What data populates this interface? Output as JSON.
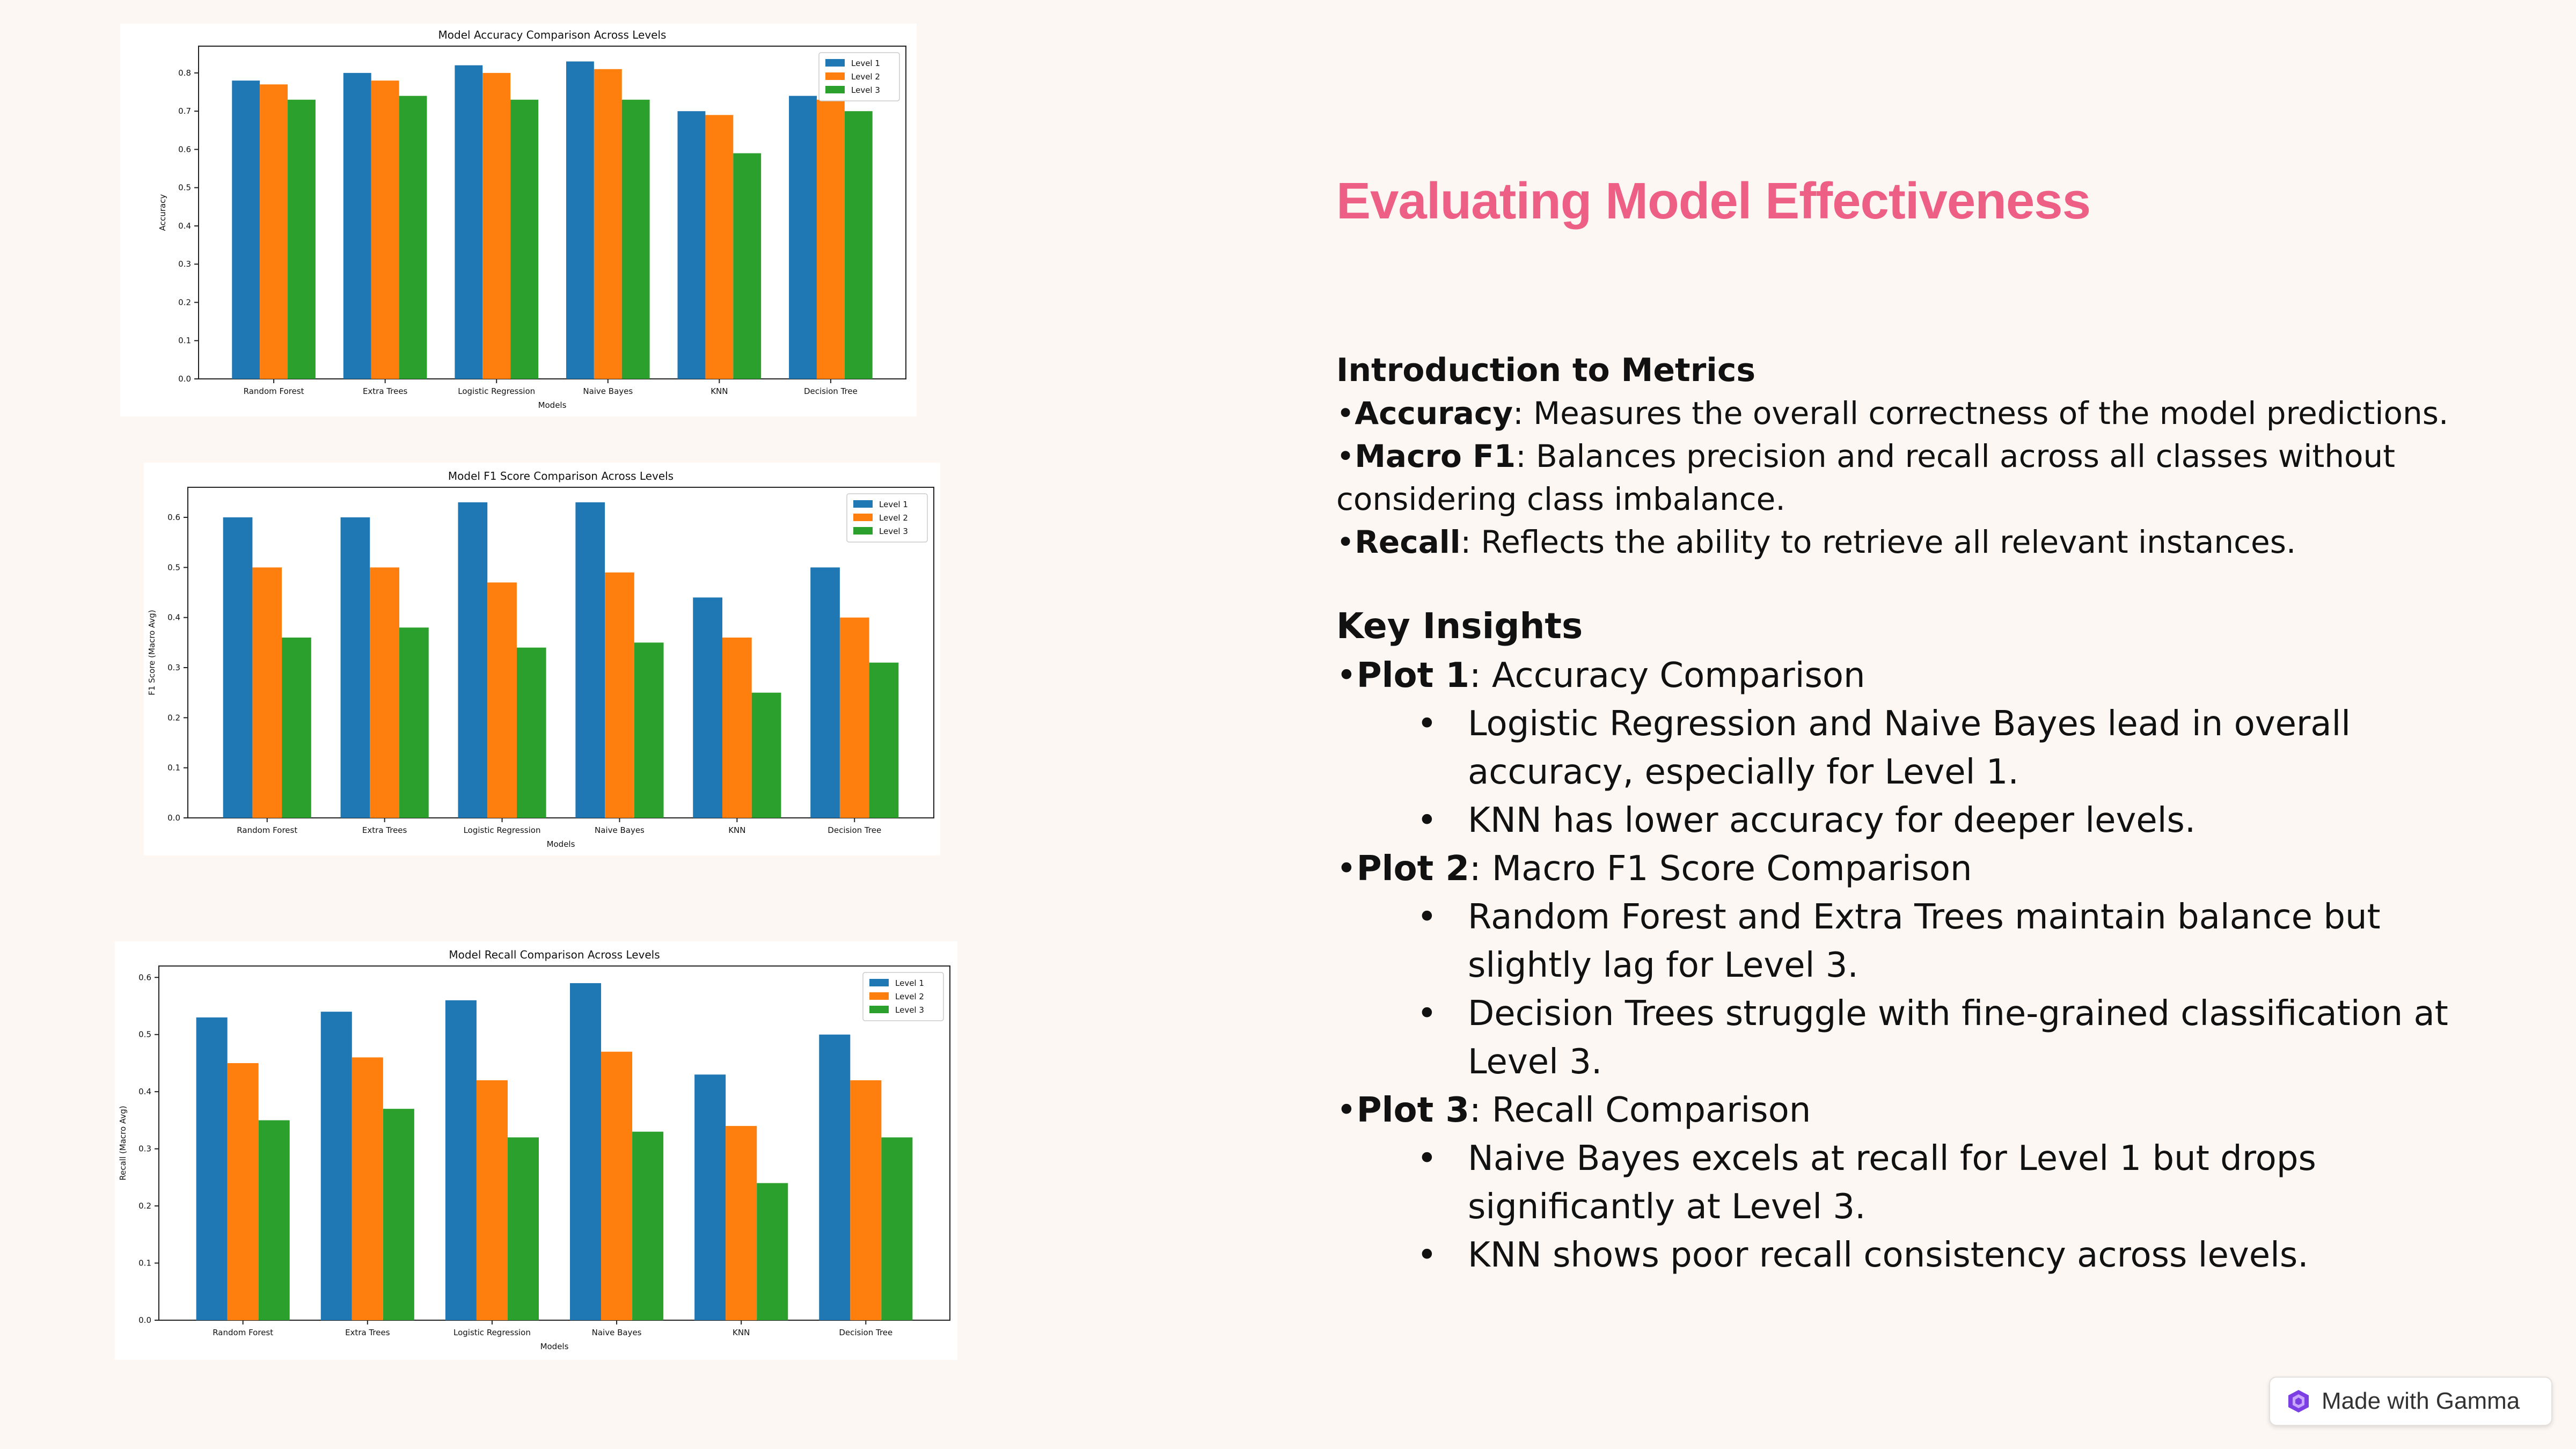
{
  "slide": {
    "title": "Evaluating Model Effectiveness",
    "intro_heading": "Introduction to Metrics",
    "metrics": [
      {
        "term": "Accuracy",
        "desc": ": Measures the overall correctness of the model predictions."
      },
      {
        "term": "Macro F1",
        "desc": ": Balances precision and recall across all classes without"
      },
      {
        "term": "",
        "desc": "considering class imbalance."
      },
      {
        "term": "Recall",
        "desc": ": Reflects the ability to retrieve all relevant instances."
      }
    ],
    "insights_heading": "Key Insights",
    "plot1": {
      "term": "Plot 1",
      "desc": ": Accuracy Comparison",
      "bullets": [
        [
          "Logistic Regression and Naive Bayes lead in overall",
          "accuracy, especially for Level 1."
        ],
        [
          "KNN has lower accuracy for deeper levels."
        ]
      ]
    },
    "plot2": {
      "term": "Plot 2",
      "desc": ": Macro F1 Score Comparison",
      "bullets": [
        [
          "Random Forest and Extra Trees maintain balance but",
          "slightly lag for Level 3."
        ],
        [
          "Decision Trees struggle with fine-grained classification at",
          "Level 3."
        ]
      ]
    },
    "plot3": {
      "term": "Plot 3",
      "desc": ": Recall Comparison",
      "bullets": [
        [
          "Naive Bayes excels at recall for Level 1 but drops",
          "significantly at Level 3."
        ],
        [
          "KNN shows poor recall consistency across levels."
        ]
      ]
    },
    "bullet_char": "•"
  },
  "badge": {
    "label": "Made with Gamma",
    "icon": "gamma-logo-icon"
  },
  "colors": {
    "level1": "#1f77b4",
    "level2": "#ff7f0e",
    "level3": "#2ca02c",
    "title": "#ee5f86"
  },
  "chart_data": [
    {
      "type": "bar",
      "title": "Model Accuracy Comparison Across Levels",
      "xlabel": "Models",
      "ylabel": "Accuracy",
      "categories": [
        "Random Forest",
        "Extra Trees",
        "Logistic Regression",
        "Naive Bayes",
        "KNN",
        "Decision Tree"
      ],
      "series": [
        {
          "name": "Level 1",
          "values": [
            0.78,
            0.8,
            0.82,
            0.83,
            0.7,
            0.74
          ]
        },
        {
          "name": "Level 2",
          "values": [
            0.77,
            0.78,
            0.8,
            0.81,
            0.69,
            0.73
          ]
        },
        {
          "name": "Level 3",
          "values": [
            0.73,
            0.74,
            0.73,
            0.73,
            0.59,
            0.7
          ]
        }
      ],
      "ylim": [
        0,
        0.87
      ],
      "yticks": [
        0.0,
        0.1,
        0.2,
        0.3,
        0.4,
        0.5,
        0.6,
        0.7,
        0.8
      ],
      "yticklabels": [
        "0.0",
        "0.1",
        "0.2",
        "0.3",
        "0.4",
        "0.5",
        "0.6",
        "0.7",
        "0.8"
      ],
      "legend": "top-right",
      "grid": false
    },
    {
      "type": "bar",
      "title": "Model F1 Score Comparison Across Levels",
      "xlabel": "Models",
      "ylabel": "F1 Score (Macro Avg)",
      "categories": [
        "Random Forest",
        "Extra Trees",
        "Logistic Regression",
        "Naive Bayes",
        "KNN",
        "Decision Tree"
      ],
      "series": [
        {
          "name": "Level 1",
          "values": [
            0.6,
            0.6,
            0.63,
            0.63,
            0.44,
            0.5
          ]
        },
        {
          "name": "Level 2",
          "values": [
            0.5,
            0.5,
            0.47,
            0.49,
            0.36,
            0.4
          ]
        },
        {
          "name": "Level 3",
          "values": [
            0.36,
            0.38,
            0.34,
            0.35,
            0.25,
            0.31
          ]
        }
      ],
      "ylim": [
        0,
        0.66
      ],
      "yticks": [
        0.0,
        0.1,
        0.2,
        0.3,
        0.4,
        0.5,
        0.6
      ],
      "yticklabels": [
        "0.0",
        "0.1",
        "0.2",
        "0.3",
        "0.4",
        "0.5",
        "0.6"
      ],
      "legend": "top-right",
      "grid": false
    },
    {
      "type": "bar",
      "title": "Model Recall Comparison Across Levels",
      "xlabel": "Models",
      "ylabel": "Recall (Macro Avg)",
      "categories": [
        "Random Forest",
        "Extra Trees",
        "Logistic Regression",
        "Naive Bayes",
        "KNN",
        "Decision Tree"
      ],
      "series": [
        {
          "name": "Level 1",
          "values": [
            0.53,
            0.54,
            0.56,
            0.59,
            0.43,
            0.5
          ]
        },
        {
          "name": "Level 2",
          "values": [
            0.45,
            0.46,
            0.42,
            0.47,
            0.34,
            0.42
          ]
        },
        {
          "name": "Level 3",
          "values": [
            0.35,
            0.37,
            0.32,
            0.33,
            0.24,
            0.32
          ]
        }
      ],
      "ylim": [
        0,
        0.62
      ],
      "yticks": [
        0.0,
        0.1,
        0.2,
        0.3,
        0.4,
        0.5,
        0.6
      ],
      "yticklabels": [
        "0.0",
        "0.1",
        "0.2",
        "0.3",
        "0.4",
        "0.5",
        "0.6"
      ],
      "legend": "top-right",
      "grid": false
    }
  ]
}
